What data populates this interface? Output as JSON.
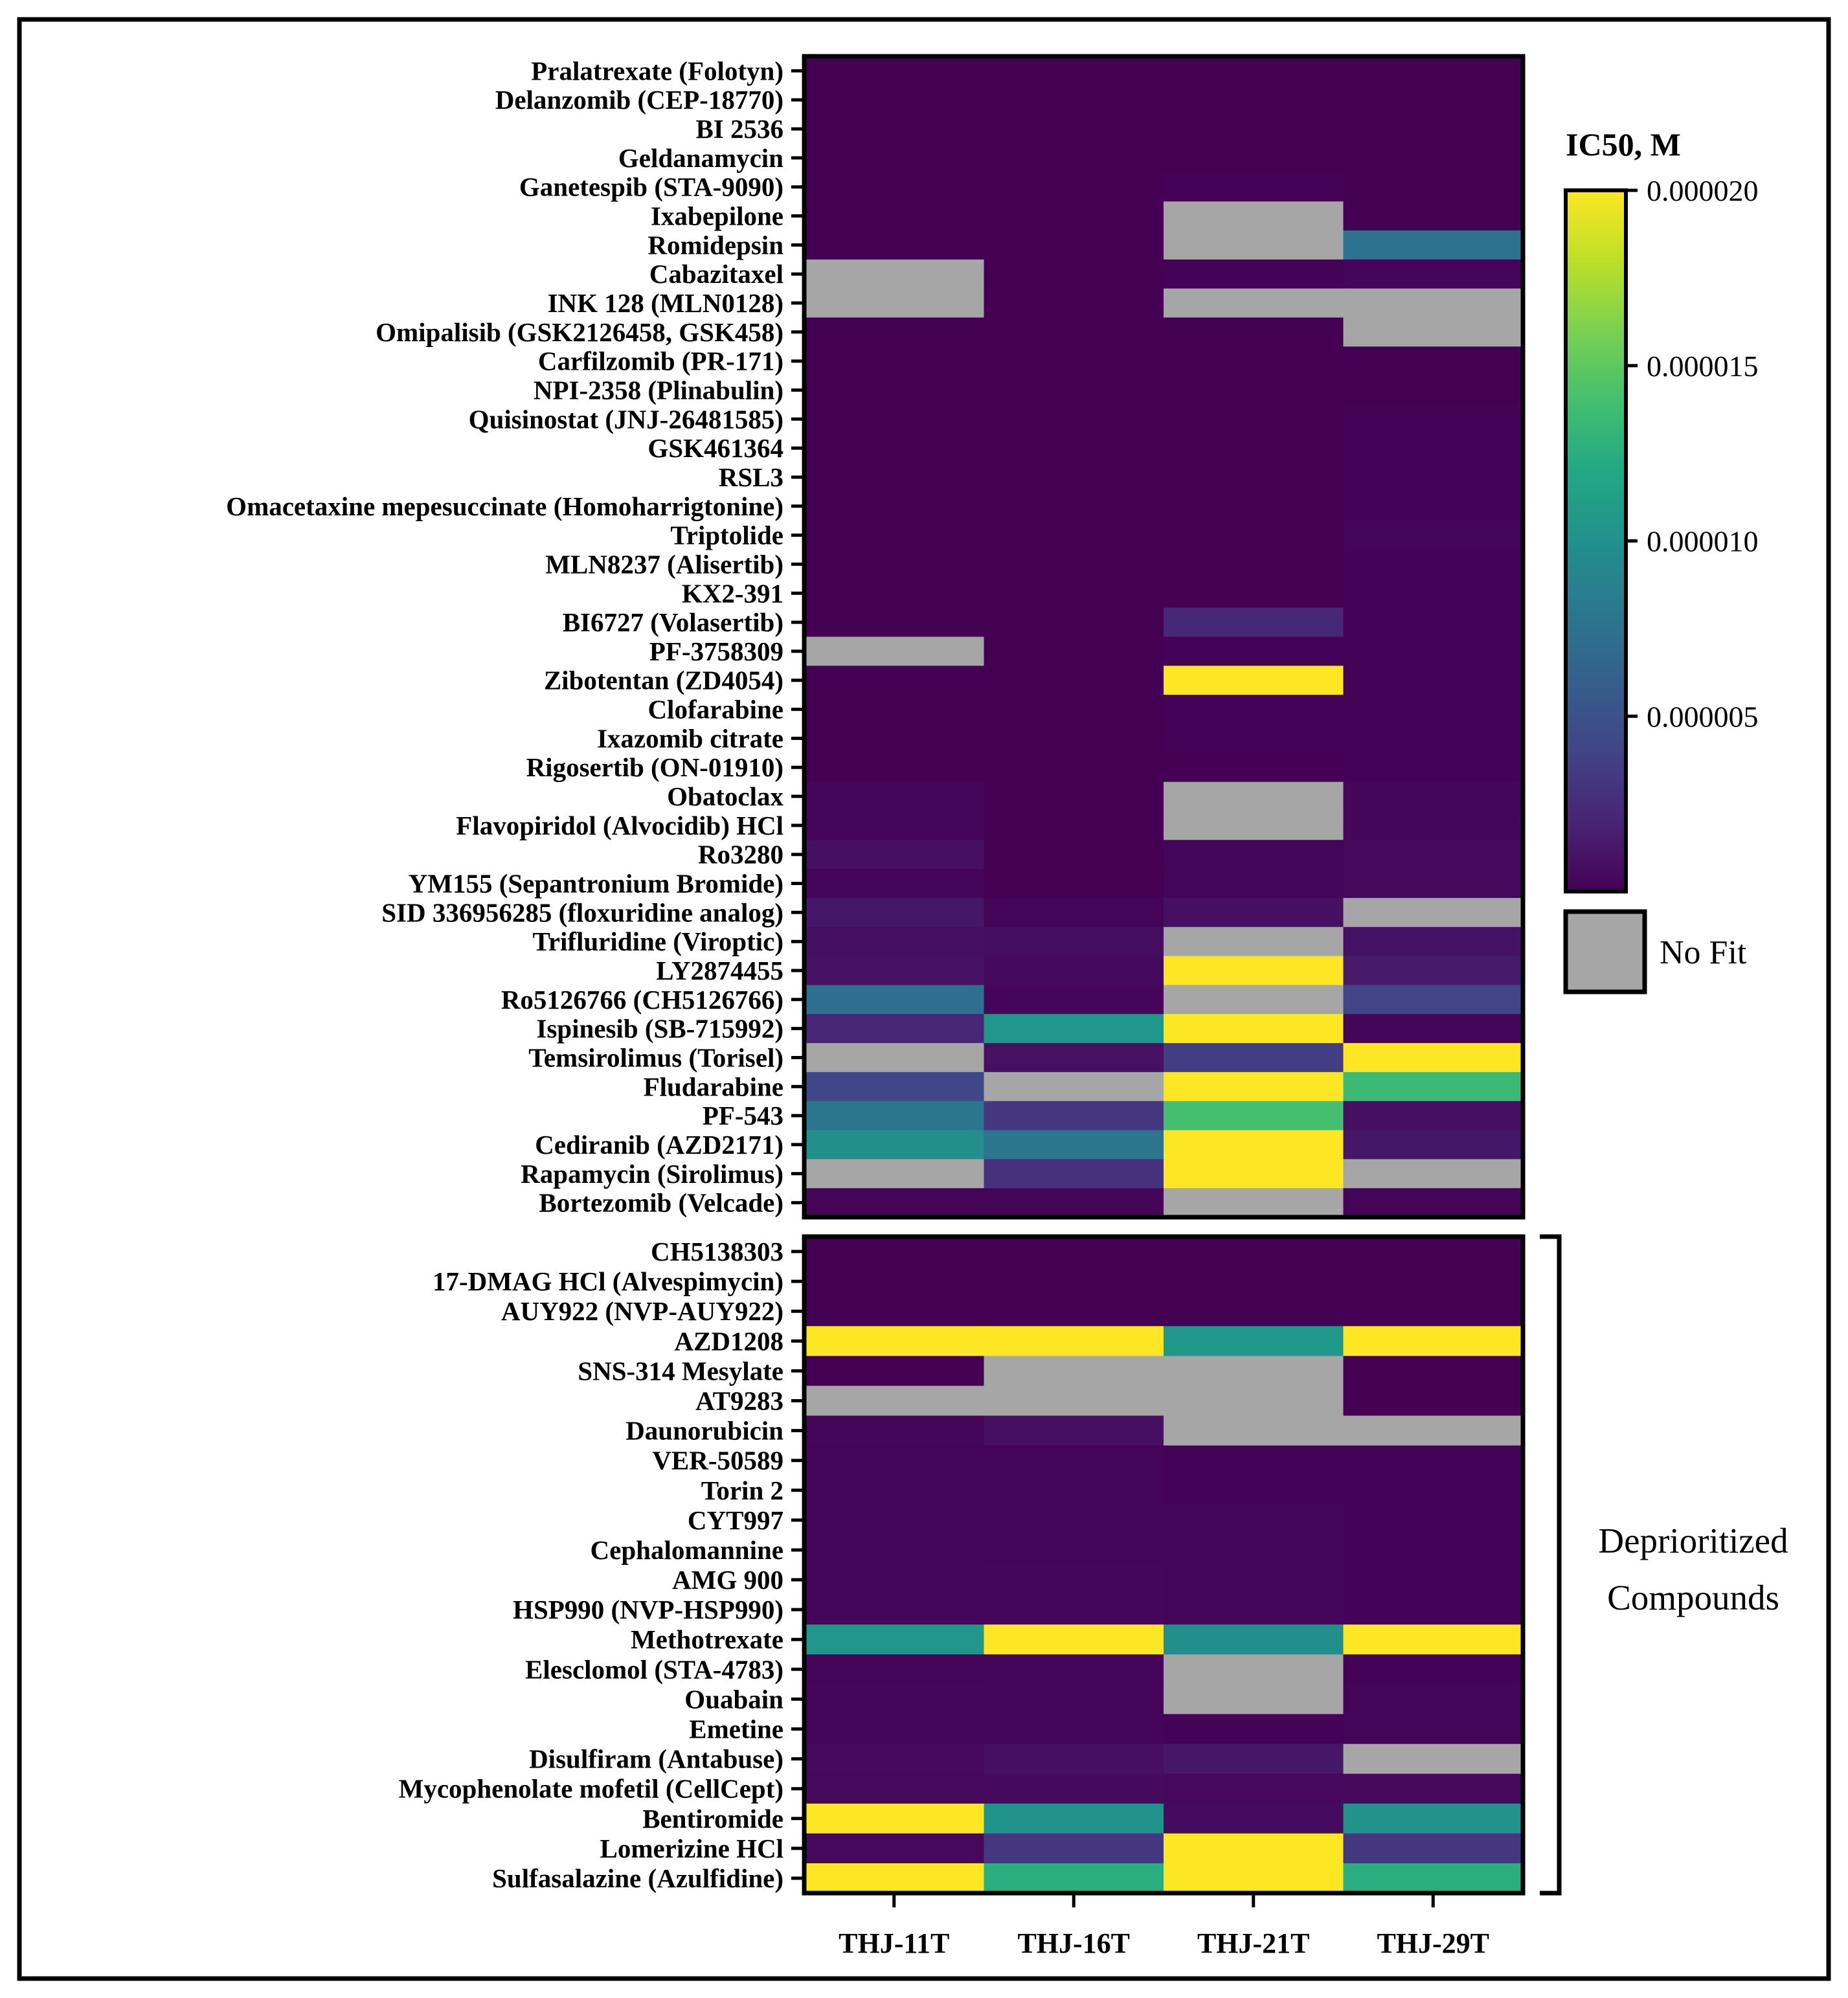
{
  "chart_data": {
    "type": "heatmap",
    "title": "",
    "columns": [
      "THJ-11T",
      "THJ-16T",
      "THJ-21T",
      "THJ-29T"
    ],
    "colorbar": {
      "title": "IC50, M",
      "min": 0,
      "max": 2e-05,
      "ticks": [
        {
          "value": 2e-05,
          "label": "0.000020"
        },
        {
          "value": 1.5e-05,
          "label": "0.000015"
        },
        {
          "value": 1e-05,
          "label": "0.000010"
        },
        {
          "value": 5e-06,
          "label": "0.000005"
        }
      ],
      "colormap": "viridis"
    },
    "no_fit_label": "No Fit",
    "no_fit_color": "#a6a6a6",
    "group_annotation": "Deprioritized Compounds",
    "groups": [
      {
        "name": "main",
        "rows": [
          {
            "label": "Pralatrexate (Folotyn)",
            "values": [
              0,
              0,
              0,
              0
            ]
          },
          {
            "label": "Delanzomib (CEP-18770)",
            "values": [
              0,
              0,
              0,
              0
            ]
          },
          {
            "label": "BI 2536",
            "values": [
              0,
              0,
              0,
              0
            ]
          },
          {
            "label": "Geldanamycin",
            "values": [
              0,
              0,
              0,
              0
            ]
          },
          {
            "label": "Ganetespib (STA-9090)",
            "values": [
              0,
              0,
              1e-07,
              0
            ]
          },
          {
            "label": "Ixabepilone",
            "values": [
              0,
              0,
              null,
              0
            ]
          },
          {
            "label": "Romidepsin",
            "values": [
              0,
              0,
              null,
              7.5e-06
            ]
          },
          {
            "label": "Cabazitaxel",
            "values": [
              null,
              0,
              1e-07,
              2e-07
            ]
          },
          {
            "label": "INK 128 (MLN0128)",
            "values": [
              null,
              0,
              null,
              null
            ]
          },
          {
            "label": "Omipalisib (GSK2126458, GSK458)",
            "values": [
              0,
              0,
              0,
              null
            ]
          },
          {
            "label": "Carfilzomib (PR-171)",
            "values": [
              0,
              0,
              0,
              0
            ]
          },
          {
            "label": "NPI-2358 (Plinabulin)",
            "values": [
              0,
              0,
              0,
              0
            ]
          },
          {
            "label": "Quisinostat (JNJ-26481585)",
            "values": [
              0,
              0,
              0,
              1e-07
            ]
          },
          {
            "label": "GSK461364",
            "values": [
              0,
              0,
              0,
              1e-07
            ]
          },
          {
            "label": "RSL3",
            "values": [
              0,
              0,
              0,
              1e-07
            ]
          },
          {
            "label": "Omacetaxine mepesuccinate (Homoharrigtonine)",
            "values": [
              0,
              0,
              0,
              1e-07
            ]
          },
          {
            "label": "Triptolide",
            "values": [
              0,
              0,
              0,
              2e-07
            ]
          },
          {
            "label": "MLN8237 (Alisertib)",
            "values": [
              0,
              0,
              0,
              1e-07
            ]
          },
          {
            "label": "KX2-391",
            "values": [
              0,
              0,
              0,
              1e-07
            ]
          },
          {
            "label": "BI6727 (Volasertib)",
            "values": [
              0,
              0,
              2.2e-06,
              1e-07
            ]
          },
          {
            "label": "PF-3758309",
            "values": [
              null,
              0,
              1e-07,
              1e-07
            ]
          },
          {
            "label": "Zibotentan (ZD4054)",
            "values": [
              0,
              0,
              2e-05,
              1e-07
            ]
          },
          {
            "label": "Clofarabine",
            "values": [
              0,
              0,
              1e-07,
              1e-07
            ]
          },
          {
            "label": "Ixazomib citrate",
            "values": [
              0,
              0,
              1e-07,
              1e-07
            ]
          },
          {
            "label": "Rigosertib (ON-01910)",
            "values": [
              0,
              0,
              0,
              1e-07
            ]
          },
          {
            "label": "Obatoclax",
            "values": [
              2e-07,
              0,
              null,
              3e-07
            ]
          },
          {
            "label": "Flavopiridol (Alvocidib) HCl",
            "values": [
              2e-07,
              0,
              null,
              3e-07
            ]
          },
          {
            "label": "Ro3280",
            "values": [
              8e-07,
              0,
              2e-07,
              4e-07
            ]
          },
          {
            "label": "YM155 (Sepantronium Bromide)",
            "values": [
              3e-07,
              0,
              2e-07,
              4e-07
            ]
          },
          {
            "label": "SID 336956285 (floxuridine analog)",
            "values": [
              1.2e-06,
              2e-07,
              8e-07,
              null
            ]
          },
          {
            "label": "Trifluridine (Viroptic)",
            "values": [
              8e-07,
              7e-07,
              null,
              1e-06
            ]
          },
          {
            "label": "LY2874455",
            "values": [
              9e-07,
              5e-07,
              2e-05,
              1.4e-06
            ]
          },
          {
            "label": "Ro5126766 (CH5126766)",
            "values": [
              7.2e-06,
              3e-07,
              null,
              4e-06
            ]
          },
          {
            "label": "Ispinesib (SB-715992)",
            "values": [
              2.1e-06,
              1.05e-05,
              2e-05,
              3e-07
            ]
          },
          {
            "label": "Temsirolimus (Torisel)",
            "values": [
              null,
              9e-07,
              3.6e-06,
              2e-05
            ]
          },
          {
            "label": "Fludarabine",
            "values": [
              4.2e-06,
              null,
              2e-05,
              1.35e-05
            ]
          },
          {
            "label": "PF-543",
            "values": [
              7.8e-06,
              3.2e-06,
              1.4e-05,
              8e-07
            ]
          },
          {
            "label": "Cediranib (AZD2171)",
            "values": [
              9.8e-06,
              7.8e-06,
              2e-05,
              1.2e-06
            ]
          },
          {
            "label": "Rapamycin (Sirolimus)",
            "values": [
              null,
              2.8e-06,
              2e-05,
              null
            ]
          },
          {
            "label": "Bortezomib (Velcade)",
            "values": [
              2e-07,
              2e-07,
              null,
              2e-07
            ]
          }
        ]
      },
      {
        "name": "Deprioritized Compounds",
        "rows": [
          {
            "label": "CH5138303",
            "values": [
              0,
              0,
              0,
              0
            ]
          },
          {
            "label": "17-DMAG HCl (Alvespimycin)",
            "values": [
              0,
              0,
              0,
              0
            ]
          },
          {
            "label": "AUY922 (NVP-AUY922)",
            "values": [
              0,
              0,
              0,
              0
            ]
          },
          {
            "label": "AZD1208",
            "values": [
              2e-05,
              2e-05,
              1.05e-05,
              2e-05
            ]
          },
          {
            "label": "SNS-314 Mesylate",
            "values": [
              0,
              null,
              null,
              0
            ]
          },
          {
            "label": "AT9283",
            "values": [
              null,
              null,
              null,
              0
            ]
          },
          {
            "label": "Daunorubicin",
            "values": [
              3e-07,
              8e-07,
              null,
              null
            ]
          },
          {
            "label": "VER-50589",
            "values": [
              2e-07,
              2e-07,
              1e-07,
              1e-07
            ]
          },
          {
            "label": "Torin 2",
            "values": [
              2e-07,
              2e-07,
              1e-07,
              1e-07
            ]
          },
          {
            "label": "CYT997",
            "values": [
              2e-07,
              2e-07,
              2e-07,
              1e-07
            ]
          },
          {
            "label": "Cephalomannine",
            "values": [
              2e-07,
              2e-07,
              2e-07,
              1e-07
            ]
          },
          {
            "label": "AMG 900",
            "values": [
              2e-07,
              3e-07,
              2e-07,
              1e-07
            ]
          },
          {
            "label": "HSP990 (NVP-HSP990)",
            "values": [
              2e-07,
              3e-07,
              2e-07,
              1e-07
            ]
          },
          {
            "label": "Methotrexate",
            "values": [
              1.05e-05,
              2e-05,
              9.8e-06,
              2e-05
            ]
          },
          {
            "label": "Elesclomol (STA-4783)",
            "values": [
              2e-07,
              2e-07,
              null,
              1e-07
            ]
          },
          {
            "label": "Ouabain",
            "values": [
              3e-07,
              2e-07,
              null,
              2e-07
            ]
          },
          {
            "label": "Emetine",
            "values": [
              3e-07,
              2e-07,
              1e-07,
              2e-07
            ]
          },
          {
            "label": "Disulfiram (Antabuse)",
            "values": [
              5e-07,
              8e-07,
              1.2e-06,
              null
            ]
          },
          {
            "label": "Mycophenolate mofetil (CellCept)",
            "values": [
              4e-07,
              5e-07,
              4e-07,
              4e-07
            ]
          },
          {
            "label": "Bentiromide",
            "values": [
              2e-05,
              1.02e-05,
              6e-07,
              1.02e-05
            ]
          },
          {
            "label": "Lomerizine HCl",
            "values": [
              4e-07,
              3.2e-06,
              2e-05,
              3.2e-06
            ]
          },
          {
            "label": "Sulfasalazine (Azulfidine)",
            "values": [
              2e-05,
              1.25e-05,
              2e-05,
              1.25e-05
            ]
          }
        ]
      }
    ]
  }
}
